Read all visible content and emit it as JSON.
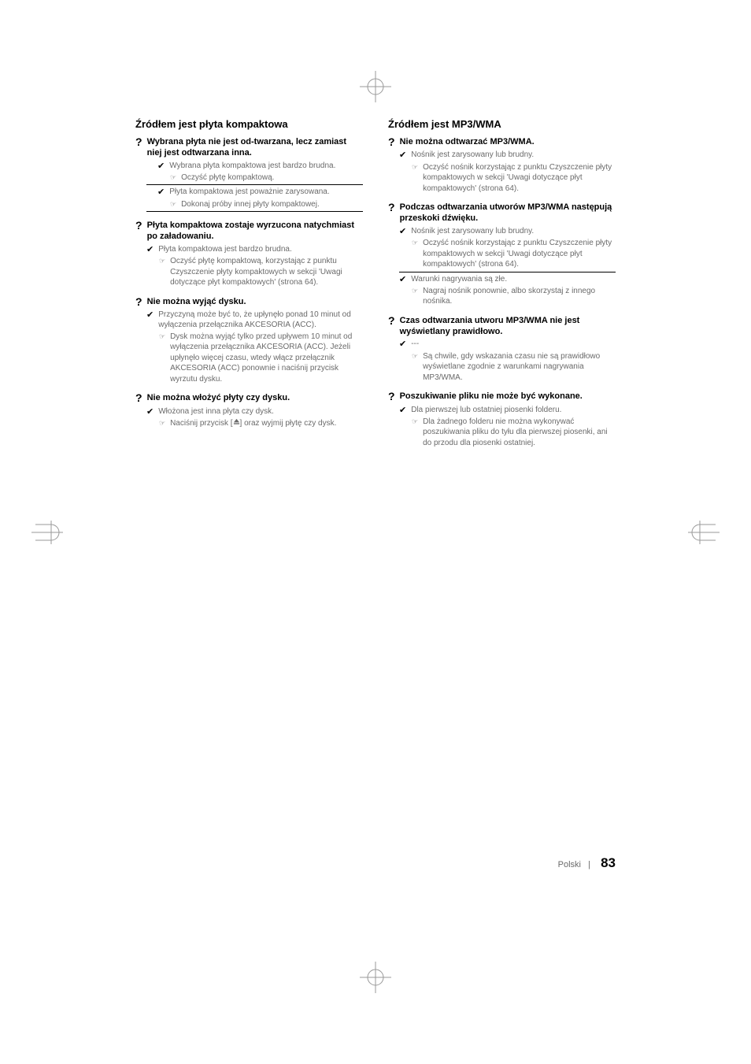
{
  "left": {
    "title": "Źródłem jest płyta kompaktowa",
    "items": [
      {
        "q": "Wybrana płyta nie jest od-twarzana, lecz zamiast niej jest odtwarzana inna.",
        "causes": [
          {
            "cause": "Wybrana płyta kompaktowa jest bardzo brudna.",
            "solutions": [
              "Oczyść płytę kompaktową."
            ]
          },
          {
            "cause": "Płyta kompaktowa jest poważnie zarysowana.",
            "solutions": [
              "Dokonaj próby innej płyty kompaktowej."
            ]
          }
        ]
      },
      {
        "q": "Płyta kompaktowa zostaje wyrzucona natychmiast po załadowaniu.",
        "causes": [
          {
            "cause": "Płyta kompaktowa jest bardzo brudna.",
            "solutions": [
              "Oczyść płytę kompaktową, korzystając z punktu Czyszczenie płyty kompaktowych w sekcji 'Uwagi dotyczące płyt kompaktowych' (strona 64)."
            ]
          }
        ]
      },
      {
        "q": "Nie można wyjąć dysku.",
        "causes": [
          {
            "cause": "Przyczyną może być to, że upłynęło ponad 10 minut od wyłączenia przełącznika AKCESORIA (ACC).",
            "solutions": [
              "Dysk można wyjąć tylko przed upływem 10 minut od wyłączenia przełącznika AKCESORIA (ACC). Jeżeli upłynęło więcej czasu, wtedy włącz przełącznik AKCESORIA (ACC) ponownie i naciśnij przycisk wyrzutu dysku."
            ]
          }
        ]
      },
      {
        "q": "Nie można włożyć płyty czy dysku.",
        "causes": [
          {
            "cause": "Włożona jest inna płyta czy dysk.",
            "solutions": [
              "Naciśnij przycisk [▲] oraz wyjmij płytę czy dysk."
            ],
            "eject": true
          }
        ]
      }
    ]
  },
  "right": {
    "title": "Źródłem jest MP3/WMA",
    "items": [
      {
        "q": "Nie można odtwarzać MP3/WMA.",
        "causes": [
          {
            "cause": "Nośnik jest zarysowany lub brudny.",
            "solutions": [
              "Oczyść nośnik korzystając z punktu Czyszczenie płyty kompaktowych w sekcji 'Uwagi dotyczące płyt kompaktowych' (strona 64)."
            ]
          }
        ]
      },
      {
        "q": "Podczas odtwarzania utworów MP3/WMA następują przeskoki dźwięku.",
        "causes": [
          {
            "cause": "Nośnik jest zarysowany lub brudny.",
            "solutions": [
              "Oczyść nośnik korzystając z punktu Czyszczenie płyty kompaktowych w sekcji 'Uwagi dotyczące płyt kompaktowych' (strona 64)."
            ]
          },
          {
            "cause": "Warunki nagrywania są złe.",
            "solutions": [
              "Nagraj nośnik ponownie, albo skorzystaj z innego nośnika."
            ]
          }
        ]
      },
      {
        "q": "Czas odtwarzania utworu MP3/WMA nie jest wyświetlany prawidłowo.",
        "causes": [
          {
            "cause": "---",
            "solutions": [
              "Są chwile, gdy wskazania czasu nie są prawidłowo wyświetlane zgodnie z warunkami nagrywania  MP3/WMA."
            ]
          }
        ]
      },
      {
        "q": "Poszukiwanie pliku nie może być wykonane.",
        "causes": [
          {
            "cause": "Dla pierwszej lub ostatniej piosenki folderu.",
            "solutions": [
              "Dla żadnego folderu nie można wykonywać poszukiwania pliku do tyłu dla pierwszej piosenki, ani do przodu dla piosenki ostatniej."
            ]
          }
        ]
      }
    ]
  },
  "footer": {
    "lang": "Polski",
    "sep": "|",
    "page": "83"
  }
}
